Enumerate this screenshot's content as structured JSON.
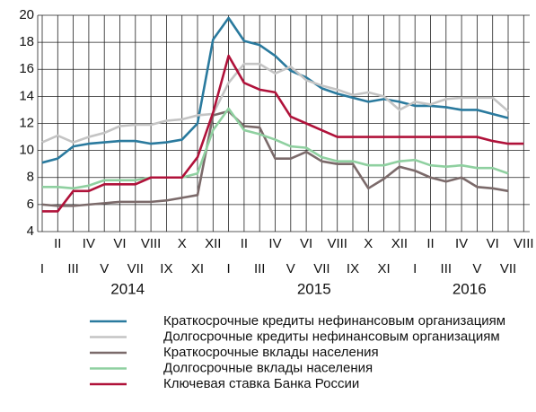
{
  "chart_data": {
    "type": "line",
    "categories": [
      "I",
      "II",
      "III",
      "IV",
      "V",
      "VI",
      "VII",
      "VIII",
      "IX",
      "X",
      "XI",
      "XII",
      "I",
      "II",
      "III",
      "IV",
      "V",
      "VI",
      "VII",
      "VIII",
      "IX",
      "X",
      "XI",
      "XII",
      "I",
      "II",
      "III",
      "IV",
      "V",
      "VI",
      "VII",
      "VIII"
    ],
    "years": [
      "2014",
      "2015",
      "2016"
    ],
    "ylim": [
      4,
      20
    ],
    "yticks": [
      4,
      6,
      8,
      10,
      12,
      14,
      16,
      18,
      20
    ],
    "grid": true,
    "series": [
      {
        "name": "Краткосрочные кредиты нефинансовым организациям",
        "color": "#2a7a9e",
        "values": [
          9.1,
          9.4,
          10.3,
          10.5,
          10.6,
          10.7,
          10.7,
          10.5,
          10.6,
          10.8,
          12.0,
          18.2,
          19.8,
          18.1,
          17.8,
          17.0,
          15.9,
          15.4,
          14.6,
          14.2,
          13.9,
          13.6,
          13.8,
          13.6,
          13.3,
          13.3,
          13.2,
          13.0,
          13.0,
          12.7,
          12.4,
          null
        ]
      },
      {
        "name": "Долгосрочные кредиты нефинансовым организациям",
        "color": "#c4c4c4",
        "values": [
          10.6,
          11.1,
          10.6,
          11.0,
          11.3,
          11.8,
          11.9,
          11.9,
          12.2,
          12.3,
          12.6,
          12.7,
          15.0,
          16.4,
          16.4,
          15.7,
          16.2,
          15.2,
          14.8,
          14.5,
          14.1,
          14.3,
          14.0,
          13.0,
          13.6,
          13.4,
          13.8,
          13.9,
          13.9,
          13.9,
          12.9,
          null
        ]
      },
      {
        "name": "Краткосрочные вклады населения",
        "color": "#7b6a6a",
        "values": [
          6.0,
          5.9,
          5.9,
          6.0,
          6.1,
          6.2,
          6.2,
          6.2,
          6.3,
          6.5,
          6.7,
          12.6,
          12.9,
          11.8,
          11.7,
          9.4,
          9.4,
          9.9,
          9.2,
          9.0,
          9.0,
          7.2,
          7.9,
          8.8,
          8.5,
          8.0,
          7.7,
          8.0,
          7.3,
          7.2,
          7.0,
          null
        ]
      },
      {
        "name": "Долгосрочные вклады населения",
        "color": "#8fd0a0",
        "values": [
          7.3,
          7.3,
          7.2,
          7.4,
          7.8,
          7.8,
          7.8,
          8.0,
          8.0,
          8.0,
          8.3,
          11.5,
          13.1,
          11.5,
          11.2,
          10.8,
          10.3,
          10.2,
          9.5,
          9.2,
          9.2,
          8.9,
          8.9,
          9.2,
          9.3,
          8.9,
          8.8,
          8.9,
          8.7,
          8.7,
          8.3,
          null
        ]
      },
      {
        "name": "Ключевая ставка Банка России",
        "color": "#b0123a",
        "values": [
          5.5,
          5.5,
          7.0,
          7.0,
          7.5,
          7.5,
          7.5,
          8.0,
          8.0,
          8.0,
          9.5,
          12.8,
          17.0,
          15.0,
          14.5,
          14.3,
          12.5,
          12.0,
          11.5,
          11.0,
          11.0,
          11.0,
          11.0,
          11.0,
          11.0,
          11.0,
          11.0,
          11.0,
          11.0,
          10.7,
          10.5,
          10.5
        ]
      }
    ]
  }
}
